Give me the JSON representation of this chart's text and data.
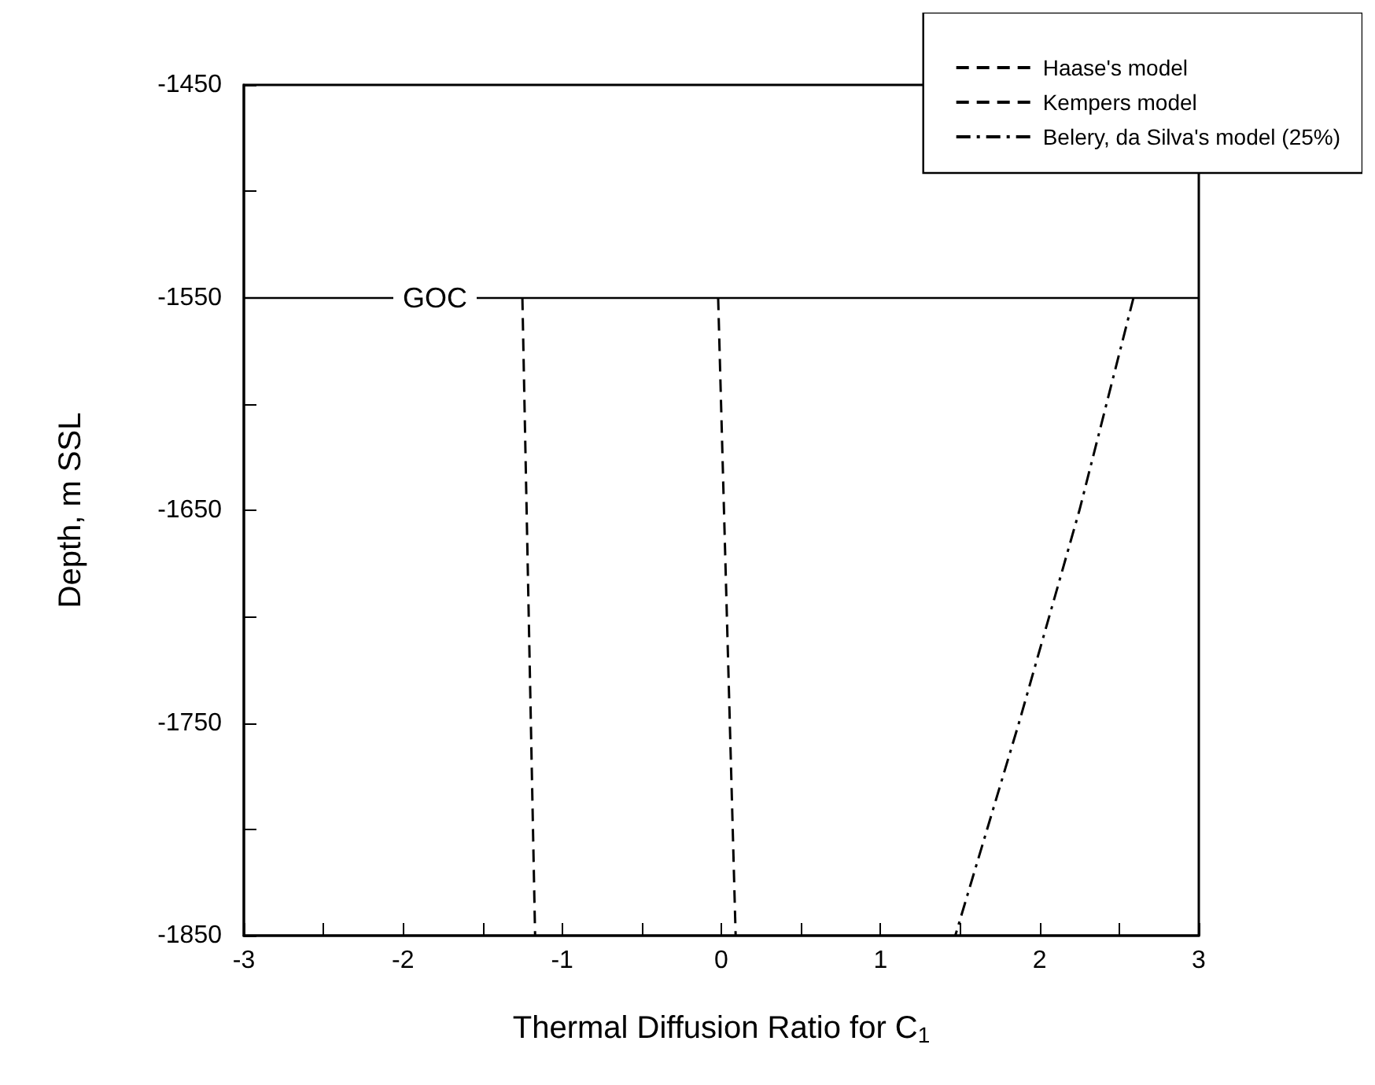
{
  "chart_data": {
    "type": "line",
    "xlabel": "Thermal Diffusion Ratio for C$_{1}$",
    "ylabel": "Depth, m SSL",
    "xlim": [
      -3,
      3
    ],
    "xticks": [
      -3,
      {
        "value": -2.5,
        "label": null
      },
      -2,
      {
        "value": -1.5,
        "label": null
      },
      -1,
      {
        "value": -0.5,
        "label": null
      },
      0,
      {
        "value": 0.5,
        "label": null
      },
      1,
      {
        "value": 1.5,
        "label": null
      },
      2,
      {
        "value": 2.5,
        "label": null
      },
      3
    ],
    "ylim": [
      -1850,
      -1450
    ],
    "yticks": [
      -1850,
      {
        "value": -1800,
        "label": null
      },
      -1750,
      {
        "value": -1700,
        "label": null
      },
      -1650,
      {
        "value": -1600,
        "label": null
      },
      -1550,
      {
        "value": -1500,
        "label": null
      },
      -1450
    ],
    "legend": "top right",
    "grid": false,
    "marker": "none",
    "series": [
      {
        "name": "Haase's model",
        "color": "#000000",
        "line_style": "dashed",
        "x": [
          -0.02,
          0.09
        ],
        "values": [
          -1550,
          -1850
        ]
      },
      {
        "name": "Kempers model",
        "color": "#000000",
        "line_style": "dashed",
        "x": [
          -1.25,
          -1.17
        ],
        "values": [
          -1550,
          -1850
        ]
      },
      {
        "name": "Belery, da Silva's model (25%)",
        "color": "#000000",
        "line_style": "dashdot",
        "x": [
          2.59,
          2.25,
          1.87,
          1.47
        ],
        "values": [
          -1550,
          -1650,
          -1750,
          -1850
        ]
      }
    ],
    "ref_lines": [
      {
        "axis": "y",
        "value": -1550,
        "label": "GOC",
        "color": "#000000"
      }
    ]
  }
}
